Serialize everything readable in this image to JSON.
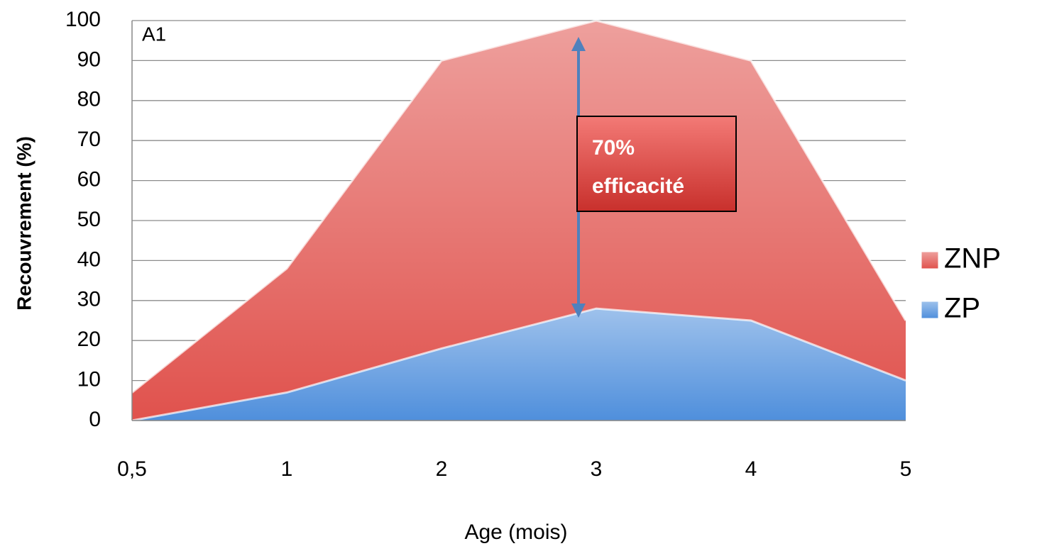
{
  "chart_data": {
    "type": "area",
    "panel_label": "A1",
    "annotation_lines": [
      "70%",
      "efficacité"
    ],
    "x_label": "Age (mois)",
    "y_label": "Recouvrement (%)",
    "categories": [
      "0,5",
      "1",
      "2",
      "3",
      "4",
      "5"
    ],
    "series": [
      {
        "name": "ZNP",
        "color": "#e0524d",
        "values": [
          7,
          38,
          90,
          100,
          90,
          25
        ]
      },
      {
        "name": "ZP",
        "color": "#4f8fdc",
        "values": [
          0,
          7,
          18,
          28,
          25,
          10
        ]
      }
    ],
    "ylim": [
      0,
      100
    ],
    "yticks": [
      0,
      10,
      20,
      30,
      40,
      50,
      60,
      70,
      80,
      90,
      100
    ],
    "grid": true,
    "legend": "right"
  }
}
